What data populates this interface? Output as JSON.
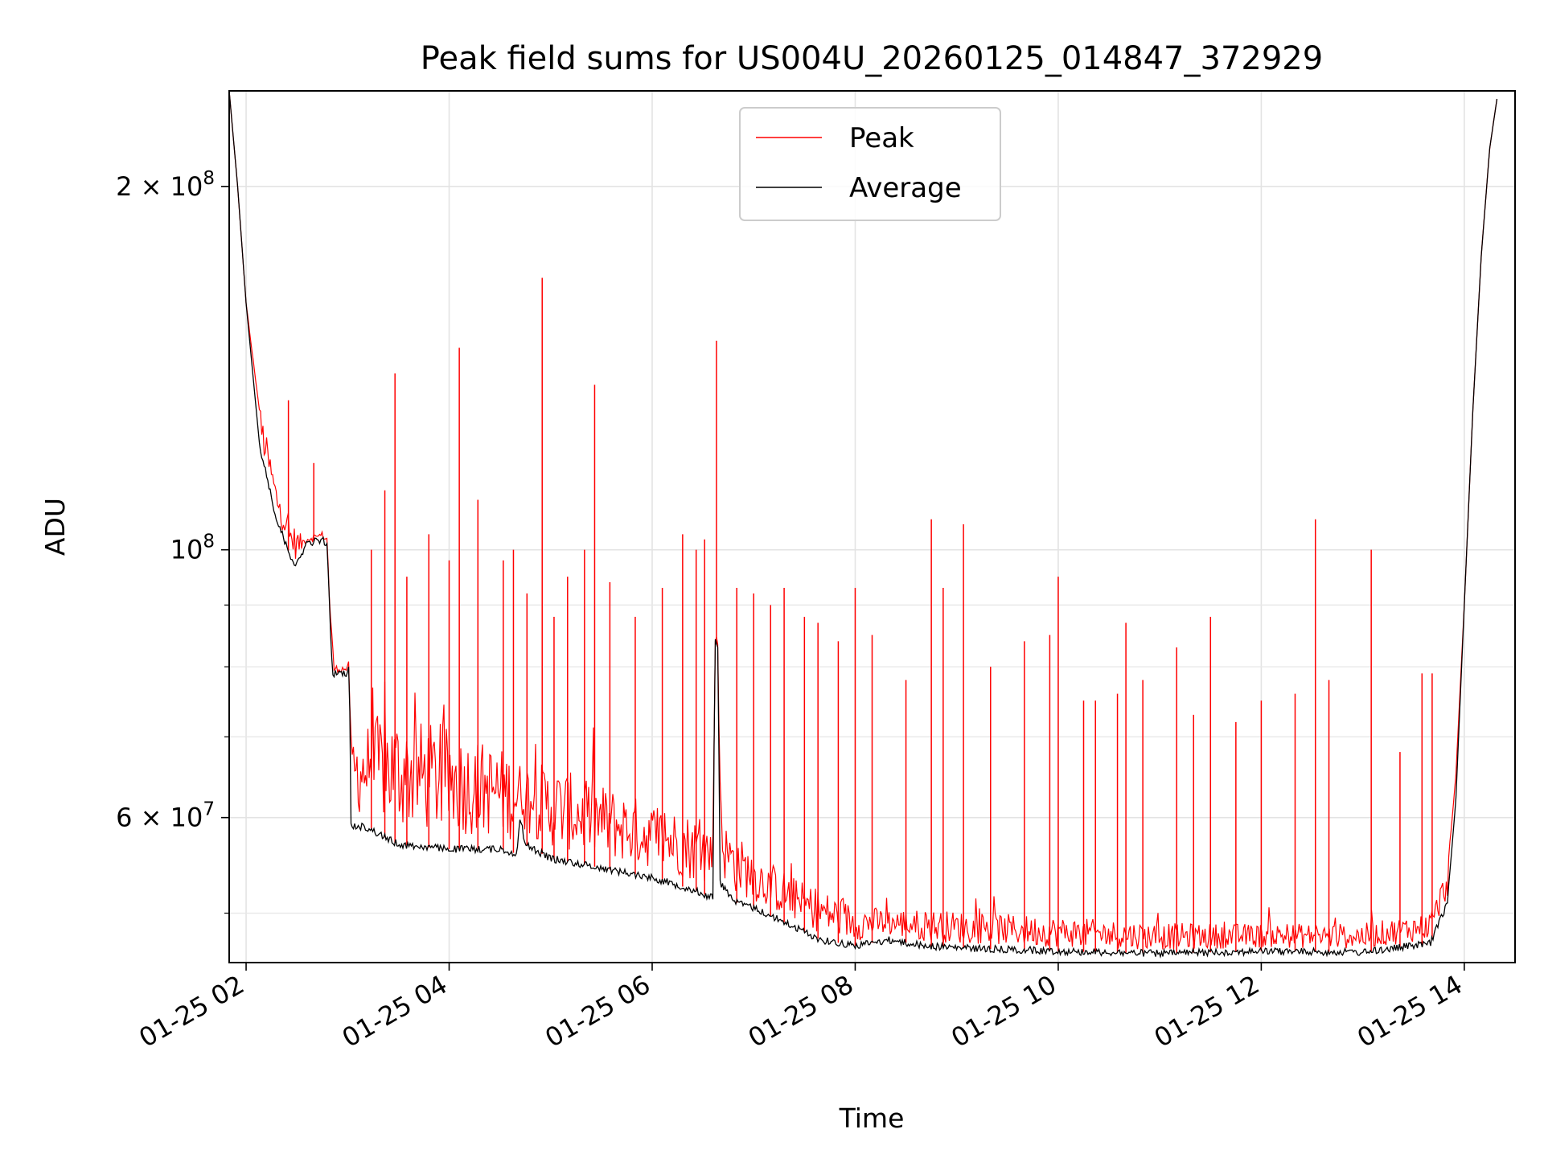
{
  "chart_data": {
    "type": "line",
    "title": "Peak field sums for US004U_20260125_014847_372929",
    "xlabel": "Time",
    "ylabel": "ADU",
    "y_scale": "log",
    "ylim": [
      45500000,
      240000000
    ],
    "xlim": [
      "01-25 01:50",
      "01-25 14:30"
    ],
    "grid": true,
    "legend_position": "upper center",
    "x_ticks": [
      {
        "t": "01-25 02:00",
        "label": "01-25 02"
      },
      {
        "t": "01-25 04:00",
        "label": "01-25 04"
      },
      {
        "t": "01-25 06:00",
        "label": "01-25 06"
      },
      {
        "t": "01-25 08:00",
        "label": "01-25 08"
      },
      {
        "t": "01-25 10:00",
        "label": "01-25 10"
      },
      {
        "t": "01-25 12:00",
        "label": "01-25 12"
      },
      {
        "t": "01-25 14:00",
        "label": "01-25 14"
      }
    ],
    "y_major_ticks": [
      {
        "value": 200000000,
        "base": "2 × 10",
        "exp": "8"
      },
      {
        "value": 100000000,
        "base": "10",
        "exp": "8"
      },
      {
        "value": 60000000,
        "base": "6 × 10",
        "exp": "7"
      }
    ],
    "y_minor_ticks": [
      50000000,
      70000000,
      80000000,
      90000000
    ],
    "series": [
      {
        "name": "Peak",
        "color": "#ff0000",
        "baseline": [
          [
            "01-25 01:50",
            240000000
          ],
          [
            "01-25 01:55",
            200000000
          ],
          [
            "01-25 02:00",
            160000000
          ],
          [
            "01-25 02:08",
            130000000
          ],
          [
            "01-25 02:18",
            112000000
          ],
          [
            "01-25 02:26",
            104000000
          ],
          [
            "01-25 02:33",
            102000000
          ],
          [
            "01-25 02:40",
            103000000
          ],
          [
            "01-25 02:48",
            98000000
          ],
          [
            "01-25 02:51",
            84000000
          ],
          [
            "01-25 02:52",
            79000000
          ],
          [
            "01-25 02:54",
            79000000
          ],
          [
            "01-25 03:01",
            80000000
          ],
          [
            "01-25 03:02",
            68000000
          ],
          [
            "01-25 03:20",
            70000000
          ],
          [
            "01-25 04:00",
            68000000
          ],
          [
            "01-25 05:00",
            64000000
          ],
          [
            "01-25 06:00",
            60000000
          ],
          [
            "01-25 06:36",
            58000000
          ],
          [
            "01-25 06:40",
            75000000
          ],
          [
            "01-25 06:42",
            58000000
          ],
          [
            "01-25 07:00",
            55000000
          ],
          [
            "01-25 07:30",
            52000000
          ],
          [
            "01-25 08:00",
            50000000
          ],
          [
            "01-25 09:00",
            49500000
          ],
          [
            "01-25 10:00",
            49000000
          ],
          [
            "01-25 11:00",
            48500000
          ],
          [
            "01-25 12:00",
            48500000
          ],
          [
            "01-25 13:00",
            48500000
          ],
          [
            "01-25 13:40",
            49500000
          ],
          [
            "01-25 13:50",
            54000000
          ],
          [
            "01-25 13:55",
            65000000
          ],
          [
            "01-25 14:00",
            90000000
          ],
          [
            "01-25 14:05",
            130000000
          ],
          [
            "01-25 14:10",
            175000000
          ],
          [
            "01-25 14:15",
            215000000
          ],
          [
            "01-25 14:20",
            240000000
          ]
        ],
        "spikes": [
          [
            "01-25 02:25",
            133000000
          ],
          [
            "01-25 02:40",
            118000000
          ],
          [
            "01-25 03:14",
            100000000
          ],
          [
            "01-25 03:22",
            112000000
          ],
          [
            "01-25 03:28",
            140000000
          ],
          [
            "01-25 03:35",
            95000000
          ],
          [
            "01-25 03:48",
            103000000
          ],
          [
            "01-25 04:00",
            98000000
          ],
          [
            "01-25 04:06",
            147000000
          ],
          [
            "01-25 04:17",
            110000000
          ],
          [
            "01-25 04:32",
            98000000
          ],
          [
            "01-25 04:38",
            100000000
          ],
          [
            "01-25 04:46",
            92000000
          ],
          [
            "01-25 04:55",
            168000000
          ],
          [
            "01-25 05:02",
            88000000
          ],
          [
            "01-25 05:10",
            95000000
          ],
          [
            "01-25 05:20",
            100000000
          ],
          [
            "01-25 05:26",
            137000000
          ],
          [
            "01-25 05:35",
            94000000
          ],
          [
            "01-25 05:50",
            88000000
          ],
          [
            "01-25 06:06",
            93000000
          ],
          [
            "01-25 06:18",
            103000000
          ],
          [
            "01-25 06:26",
            100000000
          ],
          [
            "01-25 06:31",
            102000000
          ],
          [
            "01-25 06:38",
            149000000
          ],
          [
            "01-25 06:50",
            93000000
          ],
          [
            "01-25 07:00",
            92000000
          ],
          [
            "01-25 07:10",
            90000000
          ],
          [
            "01-25 07:18",
            93000000
          ],
          [
            "01-25 07:30",
            88000000
          ],
          [
            "01-25 07:38",
            87000000
          ],
          [
            "01-25 07:50",
            84000000
          ],
          [
            "01-25 08:00",
            93000000
          ],
          [
            "01-25 08:10",
            85000000
          ],
          [
            "01-25 08:30",
            78000000
          ],
          [
            "01-25 08:45",
            106000000
          ],
          [
            "01-25 08:52",
            93000000
          ],
          [
            "01-25 09:04",
            105000000
          ],
          [
            "01-25 09:20",
            80000000
          ],
          [
            "01-25 09:40",
            84000000
          ],
          [
            "01-25 09:55",
            85000000
          ],
          [
            "01-25 10:00",
            95000000
          ],
          [
            "01-25 10:15",
            75000000
          ],
          [
            "01-25 10:22",
            75000000
          ],
          [
            "01-25 10:35",
            76000000
          ],
          [
            "01-25 10:40",
            87000000
          ],
          [
            "01-25 10:50",
            78000000
          ],
          [
            "01-25 11:10",
            83000000
          ],
          [
            "01-25 11:20",
            73000000
          ],
          [
            "01-25 11:30",
            88000000
          ],
          [
            "01-25 11:45",
            72000000
          ],
          [
            "01-25 12:00",
            75000000
          ],
          [
            "01-25 12:20",
            76000000
          ],
          [
            "01-25 12:32",
            106000000
          ],
          [
            "01-25 12:40",
            78000000
          ],
          [
            "01-25 13:05",
            100000000
          ],
          [
            "01-25 13:22",
            68000000
          ],
          [
            "01-25 13:35",
            79000000
          ],
          [
            "01-25 13:41",
            79000000
          ]
        ]
      },
      {
        "name": "Average",
        "color": "#000000",
        "baseline": [
          [
            "01-25 01:50",
            240000000
          ],
          [
            "01-25 01:55",
            200000000
          ],
          [
            "01-25 02:00",
            160000000
          ],
          [
            "01-25 02:08",
            122000000
          ],
          [
            "01-25 02:18",
            106000000
          ],
          [
            "01-25 02:26",
            99000000
          ],
          [
            "01-25 02:30",
            97000000
          ],
          [
            "01-25 02:35",
            101000000
          ],
          [
            "01-25 02:45",
            102000000
          ],
          [
            "01-25 02:48",
            101000000
          ],
          [
            "01-25 02:50",
            84000000
          ],
          [
            "01-25 02:51",
            79000000
          ],
          [
            "01-25 03:00",
            79000000
          ],
          [
            "01-25 03:01",
            80000000
          ],
          [
            "01-25 03:02",
            59000000
          ],
          [
            "01-25 03:10",
            59000000
          ],
          [
            "01-25 03:30",
            57000000
          ],
          [
            "01-25 04:00",
            56500000
          ],
          [
            "01-25 04:30",
            56500000
          ],
          [
            "01-25 04:40",
            56000000
          ],
          [
            "01-25 04:42",
            60000000
          ],
          [
            "01-25 04:45",
            57000000
          ],
          [
            "01-25 05:00",
            55500000
          ],
          [
            "01-25 05:30",
            54500000
          ],
          [
            "01-25 06:00",
            53500000
          ],
          [
            "01-25 06:20",
            52500000
          ],
          [
            "01-25 06:36",
            51500000
          ],
          [
            "01-25 06:37",
            84000000
          ],
          [
            "01-25 06:39",
            83000000
          ],
          [
            "01-25 06:40",
            53000000
          ],
          [
            "01-25 06:50",
            51000000
          ],
          [
            "01-25 07:00",
            50500000
          ],
          [
            "01-25 07:20",
            49000000
          ],
          [
            "01-25 07:40",
            47500000
          ],
          [
            "01-25 08:00",
            47000000
          ],
          [
            "01-25 08:20",
            47500000
          ],
          [
            "01-25 08:40",
            47000000
          ],
          [
            "01-25 09:00",
            46800000
          ],
          [
            "01-25 10:00",
            46500000
          ],
          [
            "01-25 11:00",
            46300000
          ],
          [
            "01-25 12:00",
            46500000
          ],
          [
            "01-25 13:00",
            46400000
          ],
          [
            "01-25 13:40",
            47200000
          ],
          [
            "01-25 13:50",
            51000000
          ],
          [
            "01-25 13:55",
            62000000
          ],
          [
            "01-25 14:00",
            90000000
          ],
          [
            "01-25 14:05",
            130000000
          ],
          [
            "01-25 14:10",
            175000000
          ],
          [
            "01-25 14:15",
            215000000
          ],
          [
            "01-25 14:20",
            240000000
          ]
        ]
      }
    ]
  }
}
